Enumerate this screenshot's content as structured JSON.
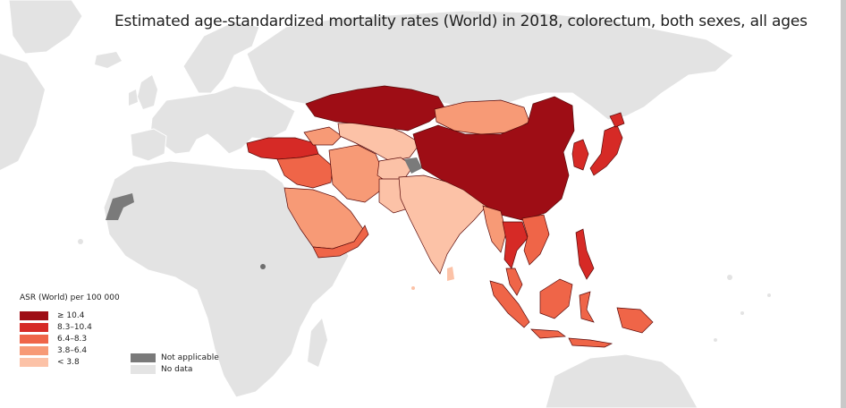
{
  "title": "Estimated age-standardized mortality rates (World) in 2018, colorectum, both sexes, all ages",
  "legend": {
    "title": "ASR (World) per 100 000",
    "classes": [
      {
        "label": "≥ 10.4",
        "color": "#9e0d15"
      },
      {
        "label": "8.3–10.4",
        "color": "#d62a26"
      },
      {
        "label": "6.4–8.3",
        "color": "#ef6548"
      },
      {
        "label": "3.8–6.4",
        "color": "#f79a76"
      },
      {
        "label": "< 3.8",
        "color": "#fcc2a7"
      }
    ],
    "extra": [
      {
        "label": "Not applicable",
        "color": "#7a7a7a"
      },
      {
        "label": "No data",
        "color": "#e4e4e4"
      }
    ]
  },
  "colors": {
    "ocean": "#ffffff",
    "land": "#e3e3e3",
    "border": "#ffffff",
    "ink": "#202020"
  }
}
